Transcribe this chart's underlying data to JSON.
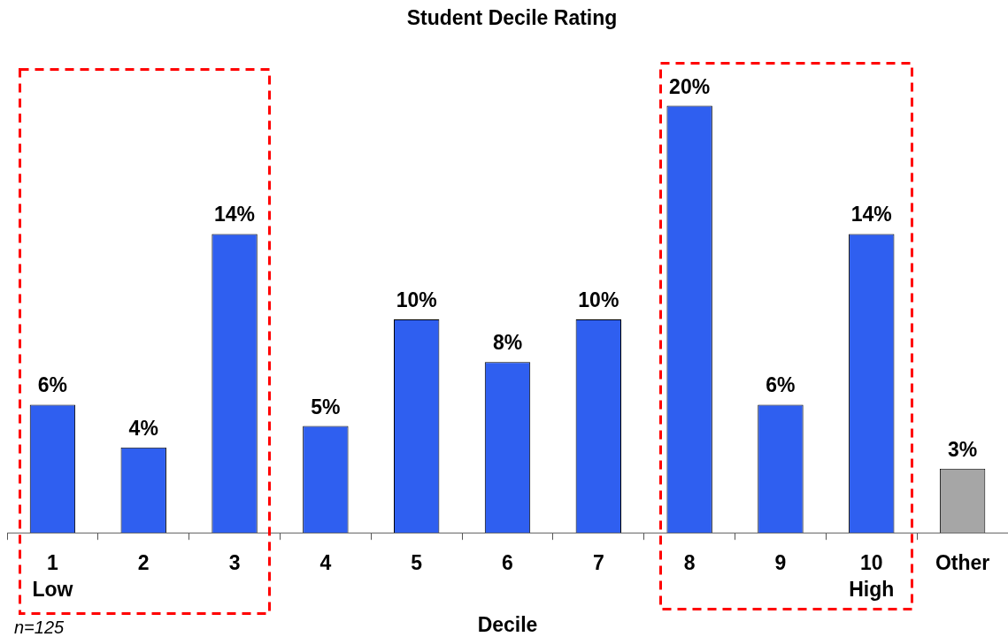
{
  "chart_data": {
    "type": "bar",
    "title": "Student Decile Rating",
    "xlabel": "Decile",
    "categories": [
      "1\nLow",
      "2",
      "3",
      "4",
      "5",
      "6",
      "7",
      "8",
      "9",
      "10\nHigh",
      "Other"
    ],
    "values": [
      6,
      4,
      14,
      5,
      10,
      8,
      10,
      20,
      6,
      14,
      3
    ],
    "value_labels": [
      "6%",
      "4%",
      "14%",
      "5%",
      "10%",
      "8%",
      "10%",
      "20%",
      "6%",
      "14%",
      "3%"
    ],
    "colors": [
      "#2f5ff0",
      "#2f5ff0",
      "#2f5ff0",
      "#2f5ff0",
      "#2f5ff0",
      "#2f5ff0",
      "#2f5ff0",
      "#2f5ff0",
      "#2f5ff0",
      "#2f5ff0",
      "#a6a6a6"
    ],
    "tick_labels": "x",
    "annotations": [
      "n=125"
    ]
  }
}
